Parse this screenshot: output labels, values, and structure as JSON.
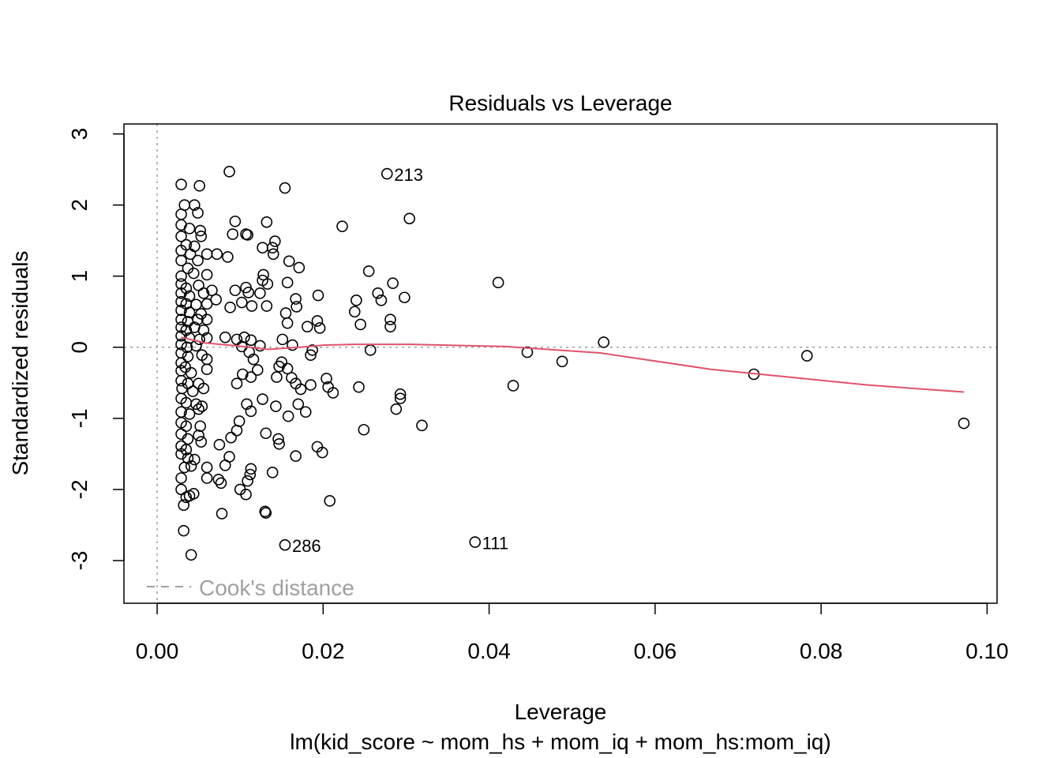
{
  "chart_data": {
    "type": "scatter",
    "title": "Residuals vs Leverage",
    "xlabel": "Leverage",
    "subtitle": "lm(kid_score ~ mom_hs + mom_iq + mom_hs:mom_iq)",
    "ylabel": "Standardized residuals",
    "xlim": [
      -0.004,
      0.1012
    ],
    "ylim": [
      -3.6,
      3.14
    ],
    "x_ticks": [
      0.0,
      0.02,
      0.04,
      0.06,
      0.08,
      0.1
    ],
    "x_tick_labels": [
      "0.00",
      "0.02",
      "0.04",
      "0.06",
      "0.08",
      "0.10"
    ],
    "y_ticks": [
      -3,
      -2,
      -1,
      0,
      1,
      2,
      3
    ],
    "y_tick_labels": [
      "-3",
      "-2",
      "-1",
      "0",
      "1",
      "2",
      "3"
    ],
    "grid": false,
    "legend": {
      "position": "bottom-left",
      "label": "Cook's distance"
    },
    "colors": {
      "points": "#000000",
      "smooth": "#DF536B",
      "reference": "#A0A0A0"
    },
    "labeled_points": [
      {
        "label": "213",
        "x": 0.0277,
        "y": 2.44
      },
      {
        "label": "111",
        "x": 0.0383,
        "y": -2.74
      },
      {
        "label": "286",
        "x": 0.0154,
        "y": -2.78
      }
    ],
    "smooth_line": [
      [
        0.0029,
        0.14
      ],
      [
        0.0058,
        0.06
      ],
      [
        0.0096,
        0.02
      ],
      [
        0.0134,
        -0.03
      ],
      [
        0.0172,
        0.0
      ],
      [
        0.02,
        0.03
      ],
      [
        0.0238,
        0.04
      ],
      [
        0.0305,
        0.04
      ],
      [
        0.042,
        0.01
      ],
      [
        0.0534,
        -0.08
      ],
      [
        0.0667,
        -0.31
      ],
      [
        0.0762,
        -0.42
      ],
      [
        0.0855,
        -0.53
      ],
      [
        0.0972,
        -0.63
      ]
    ],
    "points": [
      [
        0.0029,
        2.29
      ],
      [
        0.0051,
        2.27
      ],
      [
        0.0029,
        1.87
      ],
      [
        0.0033,
        2.0
      ],
      [
        0.0045,
        2.0
      ],
      [
        0.0049,
        1.89
      ],
      [
        0.0029,
        1.72
      ],
      [
        0.0039,
        1.67
      ],
      [
        0.0052,
        1.64
      ],
      [
        0.0029,
        1.56
      ],
      [
        0.0053,
        1.56
      ],
      [
        0.0035,
        1.44
      ],
      [
        0.0045,
        1.42
      ],
      [
        0.0029,
        1.36
      ],
      [
        0.004,
        1.31
      ],
      [
        0.006,
        1.31
      ],
      [
        0.0029,
        1.22
      ],
      [
        0.0049,
        1.22
      ],
      [
        0.0037,
        1.11
      ],
      [
        0.0029,
        1.0
      ],
      [
        0.0044,
        1.04
      ],
      [
        0.006,
        1.02
      ],
      [
        0.0029,
        0.89
      ],
      [
        0.0035,
        0.83
      ],
      [
        0.005,
        0.87
      ],
      [
        0.0029,
        0.76
      ],
      [
        0.0039,
        0.72
      ],
      [
        0.0056,
        0.76
      ],
      [
        0.0029,
        0.64
      ],
      [
        0.0035,
        0.61
      ],
      [
        0.0047,
        0.6
      ],
      [
        0.006,
        0.61
      ],
      [
        0.0029,
        0.52
      ],
      [
        0.0039,
        0.49
      ],
      [
        0.0053,
        0.47
      ],
      [
        0.0029,
        0.39
      ],
      [
        0.0037,
        0.36
      ],
      [
        0.0049,
        0.39
      ],
      [
        0.006,
        0.39
      ],
      [
        0.0029,
        0.28
      ],
      [
        0.0035,
        0.24
      ],
      [
        0.0045,
        0.28
      ],
      [
        0.0056,
        0.24
      ],
      [
        0.0029,
        0.16
      ],
      [
        0.0039,
        0.13
      ],
      [
        0.0051,
        0.11
      ],
      [
        0.006,
        0.13
      ],
      [
        0.0029,
        0.04
      ],
      [
        0.0036,
        0.0
      ],
      [
        0.0047,
        0.02
      ],
      [
        0.0029,
        -0.08
      ],
      [
        0.0037,
        -0.13
      ],
      [
        0.0054,
        -0.11
      ],
      [
        0.006,
        -0.17
      ],
      [
        0.0029,
        -0.22
      ],
      [
        0.0034,
        -0.28
      ],
      [
        0.0029,
        -0.33
      ],
      [
        0.0041,
        -0.36
      ],
      [
        0.006,
        -0.31
      ],
      [
        0.0029,
        -0.47
      ],
      [
        0.0037,
        -0.51
      ],
      [
        0.005,
        -0.51
      ],
      [
        0.003,
        -0.58
      ],
      [
        0.0043,
        -0.62
      ],
      [
        0.0056,
        -0.58
      ],
      [
        0.0029,
        -0.72
      ],
      [
        0.0035,
        -0.78
      ],
      [
        0.0047,
        -0.8
      ],
      [
        0.0054,
        -0.83
      ],
      [
        0.0029,
        -0.91
      ],
      [
        0.0039,
        -0.94
      ],
      [
        0.005,
        -0.87
      ],
      [
        0.0029,
        -1.06
      ],
      [
        0.0035,
        -1.11
      ],
      [
        0.0052,
        -1.11
      ],
      [
        0.0029,
        -1.22
      ],
      [
        0.0037,
        -1.29
      ],
      [
        0.005,
        -1.24
      ],
      [
        0.0029,
        -1.39
      ],
      [
        0.0035,
        -1.44
      ],
      [
        0.0053,
        -1.33
      ],
      [
        0.0029,
        -1.5
      ],
      [
        0.0037,
        -1.56
      ],
      [
        0.0045,
        -1.58
      ],
      [
        0.0033,
        -1.69
      ],
      [
        0.0041,
        -1.67
      ],
      [
        0.0029,
        -1.84
      ],
      [
        0.0029,
        -2.0
      ],
      [
        0.0035,
        -2.11
      ],
      [
        0.0032,
        -2.22
      ],
      [
        0.0039,
        -2.09
      ],
      [
        0.0044,
        -2.06
      ],
      [
        0.0032,
        -2.58
      ],
      [
        0.0041,
        -2.92
      ],
      [
        0.006,
        -1.69
      ],
      [
        0.006,
        -1.84
      ],
      [
        0.0087,
        2.47
      ],
      [
        0.0094,
        1.77
      ],
      [
        0.0107,
        1.59
      ],
      [
        0.0109,
        1.58
      ],
      [
        0.0132,
        1.76
      ],
      [
        0.0091,
        1.59
      ],
      [
        0.0142,
        1.49
      ],
      [
        0.0139,
        1.4
      ],
      [
        0.0127,
        1.4
      ],
      [
        0.014,
        1.31
      ],
      [
        0.0159,
        1.21
      ],
      [
        0.0171,
        1.12
      ],
      [
        0.0085,
        1.27
      ],
      [
        0.0072,
        1.31
      ],
      [
        0.0128,
        1.02
      ],
      [
        0.0127,
        0.94
      ],
      [
        0.0133,
        0.89
      ],
      [
        0.0107,
        0.84
      ],
      [
        0.0094,
        0.8
      ],
      [
        0.011,
        0.77
      ],
      [
        0.0124,
        0.76
      ],
      [
        0.0157,
        0.91
      ],
      [
        0.0102,
        0.63
      ],
      [
        0.0114,
        0.58
      ],
      [
        0.0132,
        0.58
      ],
      [
        0.0088,
        0.56
      ],
      [
        0.0168,
        0.57
      ],
      [
        0.0194,
        0.73
      ],
      [
        0.0155,
        0.48
      ],
      [
        0.0181,
        0.29
      ],
      [
        0.0193,
        0.37
      ],
      [
        0.0196,
        0.27
      ],
      [
        0.0157,
        0.34
      ],
      [
        0.0167,
        0.68
      ],
      [
        0.0151,
        0.11
      ],
      [
        0.0163,
        0.03
      ],
      [
        0.0187,
        -0.04
      ],
      [
        0.0185,
        -0.11
      ],
      [
        0.0124,
        0.02
      ],
      [
        0.0113,
        0.1
      ],
      [
        0.0105,
        0.14
      ],
      [
        0.0102,
        0.01
      ],
      [
        0.0082,
        0.14
      ],
      [
        0.0096,
        0.11
      ],
      [
        0.0111,
        -0.07
      ],
      [
        0.0116,
        -0.17
      ],
      [
        0.0113,
        -0.42
      ],
      [
        0.0121,
        -0.32
      ],
      [
        0.0147,
        -0.27
      ],
      [
        0.015,
        -0.21
      ],
      [
        0.0157,
        -0.3
      ],
      [
        0.0144,
        -0.42
      ],
      [
        0.0162,
        -0.43
      ],
      [
        0.0167,
        -0.51
      ],
      [
        0.0173,
        -0.59
      ],
      [
        0.0204,
        -0.44
      ],
      [
        0.0206,
        -0.56
      ],
      [
        0.0212,
        -0.64
      ],
      [
        0.0185,
        -0.53
      ],
      [
        0.0096,
        -0.51
      ],
      [
        0.0103,
        -0.38
      ],
      [
        0.0127,
        -0.73
      ],
      [
        0.0143,
        -0.83
      ],
      [
        0.017,
        -0.8
      ],
      [
        0.0158,
        -0.97
      ],
      [
        0.0108,
        -0.8
      ],
      [
        0.0113,
        -0.9
      ],
      [
        0.0099,
        -1.04
      ],
      [
        0.0096,
        -1.17
      ],
      [
        0.0089,
        -1.27
      ],
      [
        0.0075,
        -1.37
      ],
      [
        0.0087,
        -1.54
      ],
      [
        0.0082,
        -1.66
      ],
      [
        0.0074,
        -1.86
      ],
      [
        0.0077,
        -1.91
      ],
      [
        0.0113,
        -1.71
      ],
      [
        0.0112,
        -1.79
      ],
      [
        0.0109,
        -1.88
      ],
      [
        0.01,
        -2.0
      ],
      [
        0.0107,
        -2.07
      ],
      [
        0.013,
        -2.31
      ],
      [
        0.0131,
        -2.33
      ],
      [
        0.0078,
        -2.34
      ],
      [
        0.0139,
        -1.76
      ],
      [
        0.0146,
        -1.29
      ],
      [
        0.0147,
        -1.36
      ],
      [
        0.0131,
        -1.21
      ],
      [
        0.0167,
        -1.53
      ],
      [
        0.0193,
        -1.4
      ],
      [
        0.0199,
        -1.48
      ],
      [
        0.0179,
        -0.91
      ],
      [
        0.0154,
        2.24
      ],
      [
        0.0066,
        0.8
      ],
      [
        0.0071,
        0.67
      ],
      [
        0.0277,
        2.44
      ],
      [
        0.0304,
        1.81
      ],
      [
        0.0223,
        1.7
      ],
      [
        0.0255,
        1.07
      ],
      [
        0.0284,
        0.9
      ],
      [
        0.0411,
        0.91
      ],
      [
        0.0266,
        0.76
      ],
      [
        0.027,
        0.66
      ],
      [
        0.0298,
        0.7
      ],
      [
        0.024,
        0.66
      ],
      [
        0.0238,
        0.5
      ],
      [
        0.0245,
        0.32
      ],
      [
        0.0281,
        0.39
      ],
      [
        0.0281,
        0.29
      ],
      [
        0.0538,
        0.07
      ],
      [
        0.0257,
        -0.04
      ],
      [
        0.0446,
        -0.07
      ],
      [
        0.0488,
        -0.2
      ],
      [
        0.0783,
        -0.12
      ],
      [
        0.0719,
        -0.38
      ],
      [
        0.0243,
        -0.56
      ],
      [
        0.0429,
        -0.54
      ],
      [
        0.0293,
        -0.66
      ],
      [
        0.0293,
        -0.72
      ],
      [
        0.0288,
        -0.87
      ],
      [
        0.0319,
        -1.1
      ],
      [
        0.0249,
        -1.16
      ],
      [
        0.0972,
        -1.07
      ],
      [
        0.0383,
        -2.74
      ],
      [
        0.0154,
        -2.78
      ],
      [
        0.0208,
        -2.16
      ]
    ]
  }
}
